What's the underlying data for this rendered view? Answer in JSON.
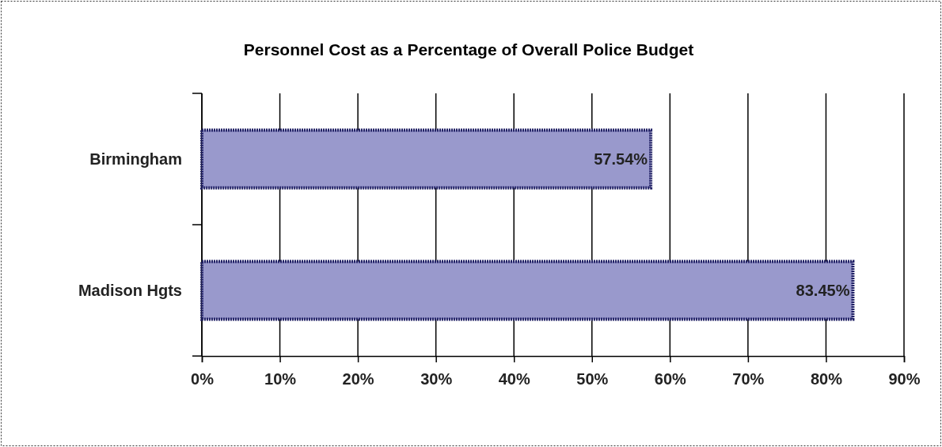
{
  "chart_data": {
    "type": "bar",
    "orientation": "horizontal",
    "title": "Personnel Cost as a Percentage of Overall Police Budget",
    "categories": [
      "Birmingham",
      "Madison Hgts"
    ],
    "values": [
      57.54,
      83.45
    ],
    "value_labels": [
      "57.54%",
      "83.45%"
    ],
    "color": "#9999cc",
    "xlim": [
      0,
      90
    ],
    "xticks": [
      {
        "value": 0,
        "label": "0%"
      },
      {
        "value": 10,
        "label": "10%"
      },
      {
        "value": 20,
        "label": "20%"
      },
      {
        "value": 30,
        "label": "30%"
      },
      {
        "value": 40,
        "label": "40%"
      },
      {
        "value": 50,
        "label": "50%"
      },
      {
        "value": 60,
        "label": "60%"
      },
      {
        "value": 70,
        "label": "70%"
      },
      {
        "value": 80,
        "label": "80%"
      },
      {
        "value": 90,
        "label": "90%"
      }
    ],
    "grid": "x"
  }
}
